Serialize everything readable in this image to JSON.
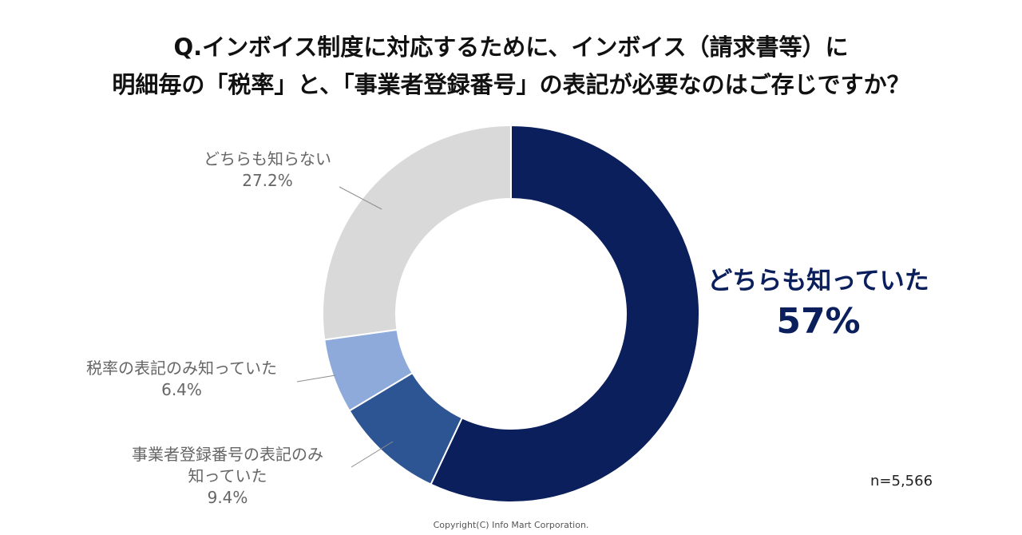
{
  "title_line1": "Q.インボイス制度に対応するために、インボイス（請求書等）に",
  "title_line2": "明細毎の「税率」と、「事業者登録番号」の表記が必要なのはご存じですか？",
  "sample_size": "n=5,566",
  "copyright": "Copyright(C) Info Mart Corporation.",
  "chart_data": {
    "type": "pie",
    "donut": true,
    "slices": [
      {
        "label": "どちらも知っていた",
        "value": 57,
        "value_label": "57%",
        "color": "#0b1f5c"
      },
      {
        "label_line1": "事業者登録番号の表記のみ",
        "label_line2": "知っていた",
        "value": 9.4,
        "value_label": "9.4%",
        "color": "#2e5593"
      },
      {
        "label": "税率の表記のみ知っていた",
        "value": 6.4,
        "value_label": "6.4%",
        "color": "#8eaadb"
      },
      {
        "label": "どちらも知らない",
        "value": 27.2,
        "value_label": "27.2%",
        "color": "#d9d9d9"
      }
    ]
  }
}
